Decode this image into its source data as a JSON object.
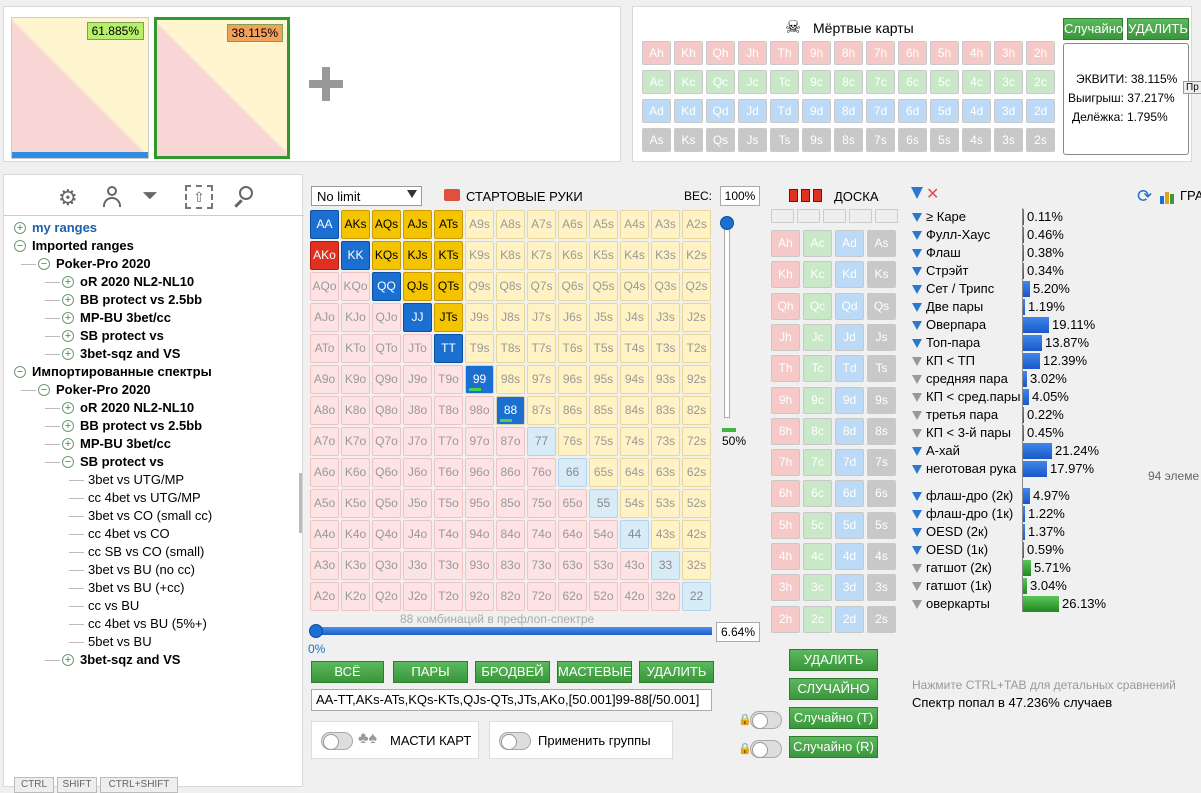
{
  "thumbs": [
    {
      "pct": "61.885%"
    },
    {
      "pct": "38.115%"
    }
  ],
  "dead": {
    "title": "Мёртвые карты",
    "random": "Случайно",
    "delete": "УДАЛИТЬ",
    "rows": [
      [
        "Ah",
        "Kh",
        "Qh",
        "Jh",
        "Th",
        "9h",
        "8h",
        "7h",
        "6h",
        "5h",
        "4h",
        "3h",
        "2h"
      ],
      [
        "Ac",
        "Kc",
        "Qc",
        "Jc",
        "Tc",
        "9c",
        "8c",
        "7c",
        "6c",
        "5c",
        "4c",
        "3c",
        "2c"
      ],
      [
        "Ad",
        "Kd",
        "Qd",
        "Jd",
        "Td",
        "9d",
        "8d",
        "7d",
        "6d",
        "5d",
        "4d",
        "3d",
        "2d"
      ],
      [
        "As",
        "Ks",
        "Qs",
        "Js",
        "Ts",
        "9s",
        "8s",
        "7s",
        "6s",
        "5s",
        "4s",
        "3s",
        "2s"
      ]
    ]
  },
  "equity": {
    "equity": "ЭКВИТИ: 38.115%",
    "win": "Выигрыш: 37.217%",
    "tie": "Делёжка: 1.795%",
    "tab": "Пр"
  },
  "tree": [
    {
      "label": "my ranges",
      "lvl": 0,
      "tog": "+",
      "bold": true,
      "blue": true
    },
    {
      "label": "Imported ranges",
      "lvl": 0,
      "tog": "-",
      "bold": true
    },
    {
      "label": "Poker-Pro 2020",
      "lvl": 1,
      "tog": "-",
      "bold": true
    },
    {
      "label": "oR 2020 NL2-NL10",
      "lvl": 2,
      "tog": "+",
      "bold": true
    },
    {
      "label": "BB protect vs 2.5bb",
      "lvl": 2,
      "tog": "+",
      "bold": true
    },
    {
      "label": "MP-BU 3bet/cc",
      "lvl": 2,
      "tog": "+",
      "bold": true
    },
    {
      "label": "SB protect vs",
      "lvl": 2,
      "tog": "+",
      "bold": true
    },
    {
      "label": "3bet-sqz and VS",
      "lvl": 2,
      "tog": "+",
      "bold": true
    },
    {
      "label": "Импортированные спектры",
      "lvl": 0,
      "tog": "-",
      "bold": true
    },
    {
      "label": "Poker-Pro 2020",
      "lvl": 1,
      "tog": "-",
      "bold": true
    },
    {
      "label": "oR 2020 NL2-NL10",
      "lvl": 2,
      "tog": "+",
      "bold": true
    },
    {
      "label": "BB protect vs 2.5bb",
      "lvl": 2,
      "tog": "+",
      "bold": true
    },
    {
      "label": "MP-BU 3bet/cc",
      "lvl": 2,
      "tog": "+",
      "bold": true
    },
    {
      "label": "SB protect vs",
      "lvl": 2,
      "tog": "-",
      "bold": true
    },
    {
      "label": "3bet vs UTG/MP",
      "lvl": 3
    },
    {
      "label": "cc 4bet vs UTG/MP",
      "lvl": 3
    },
    {
      "label": "3bet vs CO (small cc)",
      "lvl": 3
    },
    {
      "label": "cc 4bet vs CO",
      "lvl": 3
    },
    {
      "label": "cc SB vs CO (small)",
      "lvl": 3
    },
    {
      "label": "3bet vs BU (no cc)",
      "lvl": 3
    },
    {
      "label": "3bet vs BU (+cc)",
      "lvl": 3
    },
    {
      "label": "cc vs BU",
      "lvl": 3
    },
    {
      "label": "cc 4bet vs BU (5%+)",
      "lvl": 3
    },
    {
      "label": "5bet vs BU",
      "lvl": 3
    },
    {
      "label": "3bet-sqz and VS",
      "lvl": 2,
      "tog": "+",
      "bold": true
    }
  ],
  "bottom_keys": [
    "CTRL",
    "SHIFT",
    "CTRL+SHIFT"
  ],
  "grid_header": {
    "mode": "No limit",
    "start": "СТАРТОВЫЕ РУКИ",
    "weight_lbl": "ВЕС:",
    "weight": "100%"
  },
  "ranks": [
    "A",
    "K",
    "Q",
    "J",
    "T",
    "9",
    "8",
    "7",
    "6",
    "5",
    "4",
    "3",
    "2"
  ],
  "selected": [
    "AA",
    "KK",
    "QQ",
    "JJ",
    "TT",
    "AKs",
    "AQs",
    "AJs",
    "ATs",
    "KQs",
    "KJs",
    "KTs",
    "QJs",
    "QTs",
    "JTs",
    "AKo"
  ],
  "partial": [
    "99",
    "88"
  ],
  "slider": {
    "pct": "50%",
    "combos": "88 комбинаций в префлоп-спектре",
    "pct2": "6.64%",
    "zero": "0%"
  },
  "grid_buttons": [
    "ВСЁ",
    "ПАРЫ",
    "БРОДВЕЙ",
    "МАСТЕВЫЕ",
    "УДАЛИТЬ"
  ],
  "range_text": "AA-TT,AKs-ATs,KQs-KTs,QJs-QTs,JTs,AKo,[50.001]99-88[/50.001]",
  "toggles": {
    "suits": "МАСТИ КАРТ",
    "groups": "Применить группы"
  },
  "board": {
    "title": "ДОСКА",
    "rows": [
      [
        "Ah",
        "Ac",
        "Ad",
        "As"
      ],
      [
        "Kh",
        "Kc",
        "Kd",
        "Ks"
      ],
      [
        "Qh",
        "Qc",
        "Qd",
        "Qs"
      ],
      [
        "Jh",
        "Jc",
        "Jd",
        "Js"
      ],
      [
        "Th",
        "Tc",
        "Td",
        "Ts"
      ],
      [
        "9h",
        "9c",
        "9d",
        "9s"
      ],
      [
        "8h",
        "8c",
        "8d",
        "8s"
      ],
      [
        "7h",
        "7c",
        "7d",
        "7s"
      ],
      [
        "6h",
        "6c",
        "6d",
        "6s"
      ],
      [
        "5h",
        "5c",
        "5d",
        "5s"
      ],
      [
        "4h",
        "4c",
        "4d",
        "4s"
      ],
      [
        "3h",
        "3c",
        "3d",
        "3s"
      ],
      [
        "2h",
        "2c",
        "2d",
        "2s"
      ]
    ],
    "buttons": [
      "УДАЛИТЬ",
      "СЛУЧАЙНО",
      "Случайно (T)",
      "Случайно (R)"
    ]
  },
  "stats": [
    {
      "label": "≥ Каре",
      "v": "0.11%",
      "n": 0.11,
      "f": "b"
    },
    {
      "label": "Фулл-Хаус",
      "v": "0.46%",
      "n": 0.46,
      "f": "b"
    },
    {
      "label": "Флаш",
      "v": "0.38%",
      "n": 0.38,
      "f": "b"
    },
    {
      "label": "Стрэйт",
      "v": "0.34%",
      "n": 0.34,
      "f": "b"
    },
    {
      "label": "Сет / Трипс",
      "v": "5.20%",
      "n": 5.2,
      "f": "b"
    },
    {
      "label": "Две пары",
      "v": "1.19%",
      "n": 1.19,
      "f": "b"
    },
    {
      "label": "Оверпара",
      "v": "19.11%",
      "n": 19.11,
      "f": "b"
    },
    {
      "label": "Топ-пара",
      "v": "13.87%",
      "n": 13.87,
      "f": "b"
    },
    {
      "label": "КП < ТП",
      "v": "12.39%",
      "n": 12.39,
      "f": "g"
    },
    {
      "label": "средняя пара",
      "v": "3.02%",
      "n": 3.02,
      "f": "g"
    },
    {
      "label": "КП < сред.пары",
      "v": "4.05%",
      "n": 4.05,
      "f": "g"
    },
    {
      "label": "третья пара",
      "v": "0.22%",
      "n": 0.22,
      "f": "g"
    },
    {
      "label": "КП < 3-й пары",
      "v": "0.45%",
      "n": 0.45,
      "f": "g"
    },
    {
      "label": "А-хай",
      "v": "21.24%",
      "n": 21.24,
      "f": "b"
    },
    {
      "label": "неготовая рука",
      "v": "17.97%",
      "n": 17.97,
      "f": "b"
    }
  ],
  "stats2": [
    {
      "label": "флаш-дро (2к)",
      "v": "4.97%",
      "n": 4.97,
      "f": "b"
    },
    {
      "label": "флаш-дро (1к)",
      "v": "1.22%",
      "n": 1.22,
      "f": "b"
    },
    {
      "label": "OESD (2к)",
      "v": "1.37%",
      "n": 1.37,
      "f": "b"
    },
    {
      "label": "OESD (1к)",
      "v": "0.59%",
      "n": 0.59,
      "f": "b"
    },
    {
      "label": "гатшот (2к)",
      "v": "5.71%",
      "n": 5.71,
      "f": "g"
    },
    {
      "label": "гатшот (1к)",
      "v": "3.04%",
      "n": 3.04,
      "f": "g"
    },
    {
      "label": "оверкарты",
      "v": "26.13%",
      "n": 26.13,
      "f": "g"
    }
  ],
  "right": {
    "graph": "ГРА",
    "elements": "94 элеме",
    "hint": "Нажмите CTRL+TAB для детальных сравнений",
    "hit": "Спектр попал в 47.236% случаев"
  }
}
